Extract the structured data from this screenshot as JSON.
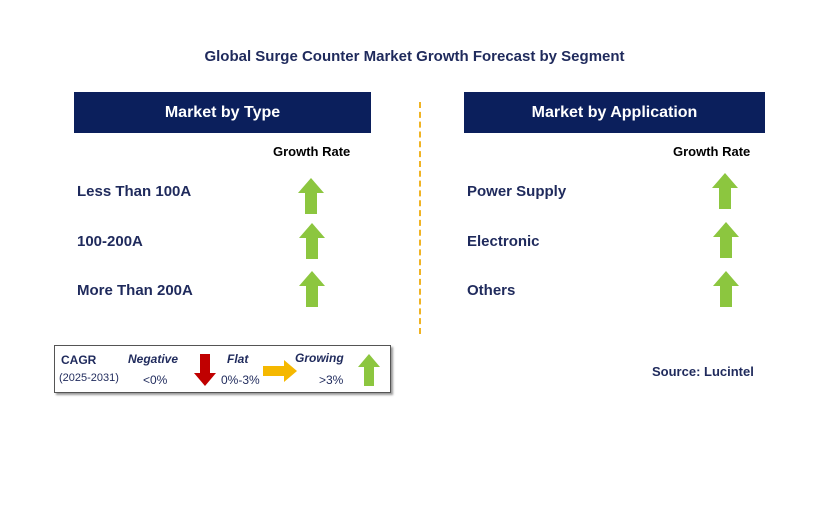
{
  "title": "Global Surge Counter Market Growth Forecast by Segment",
  "left_panel": {
    "header": "Market by Type",
    "column_header": "Growth Rate",
    "rows": [
      {
        "label": "Less Than 100A",
        "trend": "growing"
      },
      {
        "label": "100-200A",
        "trend": "growing"
      },
      {
        "label": "More Than 200A",
        "trend": "growing"
      }
    ]
  },
  "right_panel": {
    "header": "Market by Application",
    "column_header": "Growth Rate",
    "rows": [
      {
        "label": "Power Supply",
        "trend": "growing"
      },
      {
        "label": "Electronic",
        "trend": "growing"
      },
      {
        "label": "Others",
        "trend": "growing"
      }
    ]
  },
  "legend": {
    "cagr_label": "CAGR",
    "period": "(2025-2031)",
    "negative": {
      "label": "Negative",
      "range": "<0%",
      "icon": "red-down-arrow-icon"
    },
    "flat": {
      "label": "Flat",
      "range": "0%-3%",
      "icon": "orange-right-arrow-icon"
    },
    "growing": {
      "label": "Growing",
      "range": ">3%",
      "icon": "green-up-arrow-icon"
    }
  },
  "source": "Source: Lucintel",
  "colors": {
    "header_bg": "#0b1f5c",
    "text_navy": "#1f2a5c",
    "growing_green": "#8cc63f",
    "negative_red": "#c00000",
    "flat_orange": "#f5b800",
    "divider": "#f0b323"
  }
}
